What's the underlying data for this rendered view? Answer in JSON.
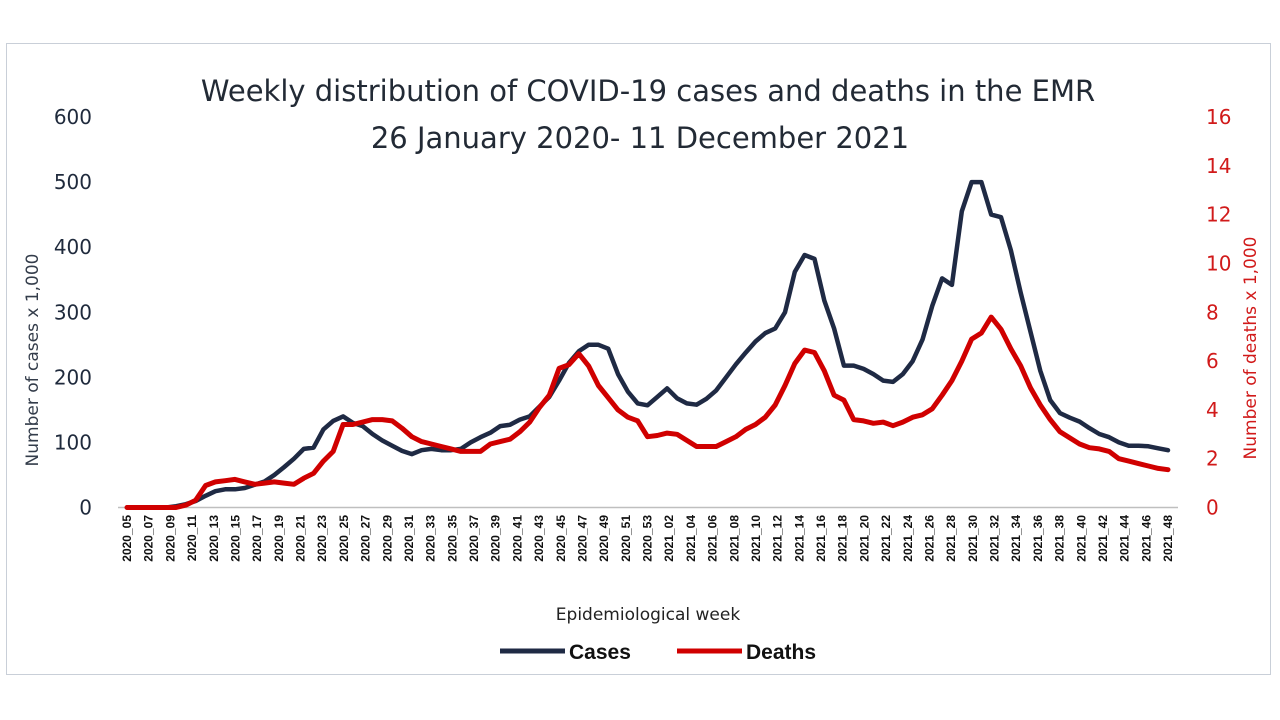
{
  "chart_data": {
    "type": "line",
    "title": "Weekly distribution of COVID-19 cases and deaths in the EMR",
    "subtitle": "26 January 2020- 11 December 2021",
    "xlabel": "Epidemiological week",
    "ylabel_left": "Number of cases x 1,000",
    "ylabel_right": "Number of deaths x 1,000",
    "ylim_left": [
      0,
      600
    ],
    "ylim_right": [
      0,
      16
    ],
    "yticks_left": [
      "0",
      "100",
      "200",
      "300",
      "400",
      "500",
      "600"
    ],
    "yticks_right": [
      "0",
      "2",
      "4",
      "6",
      "8",
      "10",
      "12",
      "14",
      "16"
    ],
    "grid": false,
    "legend_position": "bottom",
    "colors": {
      "cases": "#1f2a44",
      "deaths": "#d00000",
      "right_axis": "#d11a1a"
    },
    "x_labels": [
      "2020_05",
      "2020_07",
      "2020_09",
      "2020_11",
      "2020_13",
      "2020_15",
      "2020_17",
      "2020_19",
      "2020_21",
      "2020_23",
      "2020_25",
      "2020_27",
      "2020_29",
      "2020_31",
      "2020_33",
      "2020_35",
      "2020_37",
      "2020_39",
      "2020_41",
      "2020_43",
      "2020_45",
      "2020_47",
      "2020_49",
      "2020_51",
      "2020_53",
      "2021_02",
      "2021_04",
      "2021_06",
      "2021_08",
      "2021_10",
      "2021_12",
      "2021_14",
      "2021_16",
      "2021_18",
      "2021_20",
      "2021_22",
      "2021_24",
      "2021_26",
      "2021_28",
      "2021_30",
      "2021_32",
      "2021_34",
      "2021_36",
      "2021_38",
      "2021_40",
      "2021_42",
      "2021_44",
      "2021_46",
      "2021_48"
    ],
    "series": [
      {
        "name": "Cases",
        "axis": "left",
        "values": [
          0,
          0,
          0,
          0,
          0,
          2,
          5,
          10,
          18,
          25,
          28,
          28,
          30,
          35,
          40,
          50,
          62,
          75,
          90,
          92,
          120,
          133,
          140,
          130,
          125,
          113,
          103,
          95,
          87,
          82,
          88,
          90,
          88,
          88,
          90,
          100,
          108,
          115,
          125,
          127,
          135,
          140,
          155,
          170,
          195,
          222,
          240,
          250,
          250,
          244,
          205,
          178,
          160,
          157,
          170,
          183,
          168,
          160,
          158,
          167,
          180,
          200,
          220,
          238,
          255,
          268,
          275,
          300,
          362,
          388,
          382,
          318,
          275,
          218,
          218,
          213,
          205,
          195,
          193,
          205,
          225,
          258,
          310,
          352,
          342,
          455,
          500,
          500,
          450,
          446,
          395,
          330,
          270,
          210,
          165,
          145,
          138,
          132,
          122,
          113,
          108,
          100,
          95,
          95,
          94,
          91,
          88
        ]
      },
      {
        "name": "Deaths",
        "axis": "right",
        "values": [
          0,
          0,
          0,
          0,
          0,
          0,
          0.1,
          0.3,
          0.9,
          1.05,
          1.1,
          1.15,
          1.05,
          0.95,
          1.0,
          1.05,
          1.0,
          0.95,
          1.2,
          1.4,
          1.9,
          2.3,
          3.4,
          3.4,
          3.5,
          3.6,
          3.6,
          3.55,
          3.25,
          2.9,
          2.7,
          2.6,
          2.5,
          2.4,
          2.3,
          2.3,
          2.3,
          2.6,
          2.7,
          2.8,
          3.1,
          3.5,
          4.1,
          4.6,
          5.7,
          5.85,
          6.3,
          5.8,
          5.0,
          4.5,
          4.0,
          3.7,
          3.55,
          2.9,
          2.95,
          3.05,
          3.0,
          2.75,
          2.5,
          2.5,
          2.5,
          2.7,
          2.9,
          3.2,
          3.4,
          3.7,
          4.2,
          5.0,
          5.9,
          6.45,
          6.35,
          5.6,
          4.6,
          4.4,
          3.6,
          3.55,
          3.45,
          3.5,
          3.35,
          3.5,
          3.7,
          3.8,
          4.05,
          4.6,
          5.2,
          6.0,
          6.9,
          7.15,
          7.8,
          7.3,
          6.5,
          5.8,
          4.9,
          4.2,
          3.6,
          3.1,
          2.85,
          2.6,
          2.45,
          2.4,
          2.3,
          2.0,
          1.9,
          1.8,
          1.7,
          1.6,
          1.55
        ]
      }
    ]
  }
}
